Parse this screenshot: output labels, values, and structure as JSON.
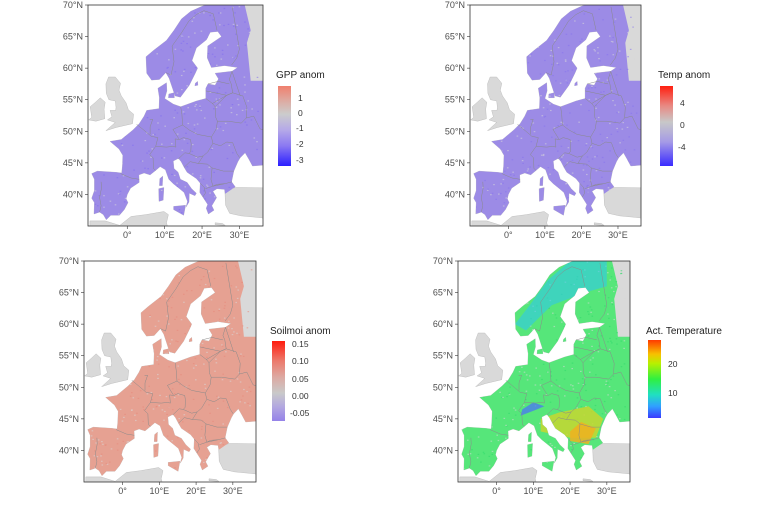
{
  "axes": {
    "lat_labels": [
      "70°N",
      "65°N",
      "60°N",
      "55°N",
      "50°N",
      "45°N",
      "40°N"
    ],
    "lon_labels": [
      "0°",
      "10°E",
      "20°E",
      "30°E"
    ]
  },
  "panels": [
    {
      "legend_title": "GPP anom",
      "legend_ticks": [
        "1",
        "0",
        "-1",
        "-2",
        "-3"
      ],
      "colors": {
        "fill": "#9c8be6",
        "fill_dark": "#7f6cf0",
        "background_land": "#d9d9d9",
        "scale_high": "#f0806e",
        "scale_mid": "#cccccc",
        "scale_low": "#2b1fff"
      }
    },
    {
      "legend_title": "Temp anom",
      "legend_ticks": [
        "4",
        "0",
        "-4"
      ],
      "colors": {
        "fill": "#9c8be6",
        "fill_dark": "#8672ee",
        "background_land": "#d9d9d9",
        "scale_high": "#ff1f10",
        "scale_mid": "#c8c8c8",
        "scale_low": "#3a2bff"
      }
    },
    {
      "legend_title": "Soilmoi anom",
      "legend_ticks": [
        "0.15",
        "0.10",
        "0.05",
        "0.00",
        "-0.05"
      ],
      "colors": {
        "fill": "#e6a192",
        "fill_dark": "#e8887a",
        "background_land": "#d9d9d9",
        "scale_high": "#ff1b0e",
        "scale_mid": "#c9c9c9",
        "scale_low": "#9582e8"
      }
    },
    {
      "legend_title": "Act. Temperature",
      "legend_ticks": [
        "20",
        "10"
      ],
      "colors": {
        "fill": "#56e67a",
        "fill_dark": "#2fd86a",
        "background_land": "#d9d9d9",
        "scale_high": "#ff3a00",
        "scale_mid": "#30f040",
        "scale_low": "#3a3aff"
      }
    }
  ]
}
